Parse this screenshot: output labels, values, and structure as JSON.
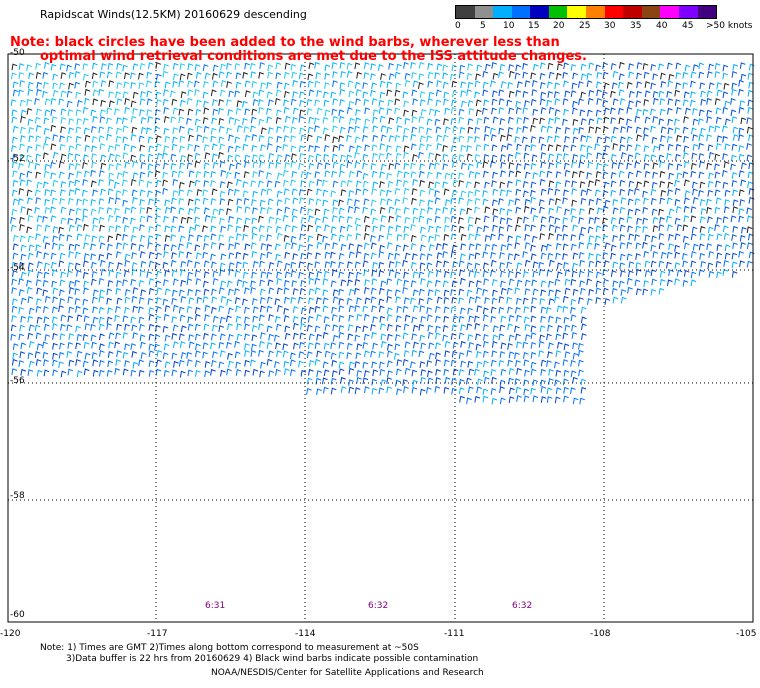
{
  "header": {
    "title": "Rapidscat Winds(12.5KM) 20160629 descending",
    "note_line1": "Note: black circles have been added to the wind barbs, wherever less than",
    "note_line2": "optimal wind retrieval conditions are met due to the ISS attitude changes."
  },
  "legend": {
    "labels": [
      "0",
      "5",
      "10",
      "15",
      "20",
      "25",
      "30",
      "35",
      "40",
      "45",
      ">50 knots"
    ],
    "colors": [
      "#404040",
      "#909090",
      "#00b0ff",
      "#0070ff",
      "#0000c0",
      "#00c000",
      "#ffff00",
      "#ff8000",
      "#ff0000",
      "#c00000",
      "#8b4513",
      "#ff00ff",
      "#8000ff",
      "#400080"
    ]
  },
  "map": {
    "lon_labels": [
      "-120",
      "-117",
      "-114",
      "-111",
      "-108",
      "-105"
    ],
    "lat_labels": [
      "-50",
      "-52",
      "-54",
      "-56",
      "-58",
      "-60"
    ],
    "time_labels": [
      "6:31",
      "6:32",
      "6:32"
    ]
  },
  "footer": {
    "line1": "Note: 1) Times are GMT 2)Times along bottom correspond to measurement at ~50S",
    "line2": "3)Data buffer is 22 hrs from 20160629 4) Black wind barbs indicate possible contamination",
    "line3": "NOAA/NESDIS/Center for Satellite Applications and Research"
  }
}
